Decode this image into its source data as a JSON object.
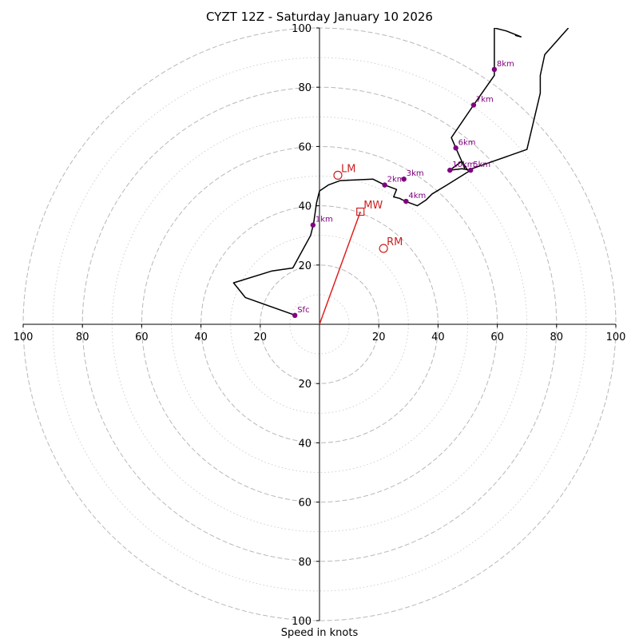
{
  "chart_data": {
    "type": "hodograph",
    "title": "CYZT 12Z - Saturday January 10 2026",
    "xlabel": "Speed in knots",
    "ylabel": "",
    "xlim": [
      -100,
      100
    ],
    "ylim": [
      -100,
      100
    ],
    "grid": true,
    "rings": {
      "major": [
        20,
        40,
        60,
        80,
        100
      ],
      "minor": [
        10,
        30,
        50,
        70,
        90
      ]
    },
    "x_tick_labels": [
      "100",
      "80",
      "60",
      "40",
      "20",
      "0",
      "20",
      "40",
      "60",
      "80",
      "100"
    ],
    "x_tick_values": [
      -100,
      -80,
      -60,
      -40,
      -20,
      0,
      20,
      40,
      60,
      80,
      100
    ],
    "y_tick_labels": [
      "20",
      "40",
      "60",
      "80",
      "100"
    ],
    "y_tick_values": [
      20,
      40,
      60,
      80,
      100
    ],
    "y_tick_labels_below": [
      "20",
      "40",
      "60",
      "80",
      "100"
    ],
    "y_tick_values_below": [
      -20,
      -40,
      -60,
      -80,
      -100
    ],
    "colors": {
      "trace": "#000000",
      "height_marker": "#800080",
      "motion": "#cc2020",
      "mean_wind_vector": "#e02020",
      "major_grid": "#b8b8b8",
      "minor_grid": "#d0d0d0"
    },
    "trace": [
      [
        -8,
        3
      ],
      [
        -25,
        9
      ],
      [
        -29,
        14
      ],
      [
        -16,
        18
      ],
      [
        -9,
        19
      ],
      [
        -3,
        30
      ],
      [
        -2,
        34
      ],
      [
        -1,
        41
      ],
      [
        0,
        45
      ],
      [
        3,
        47
      ],
      [
        7,
        48.5
      ],
      [
        18,
        49
      ],
      [
        22,
        47
      ],
      [
        26,
        45.5
      ],
      [
        25,
        43
      ],
      [
        27,
        42.5
      ],
      [
        29,
        41.5
      ],
      [
        33,
        40
      ],
      [
        36,
        42
      ],
      [
        38,
        44
      ],
      [
        43,
        47
      ],
      [
        51,
        52
      ],
      [
        48,
        52.5
      ],
      [
        44,
        52
      ],
      [
        48,
        55
      ],
      [
        50,
        52
      ],
      [
        70,
        59
      ],
      [
        74.5,
        78
      ],
      [
        74.5,
        84
      ],
      [
        76,
        91
      ],
      [
        84,
        100
      ]
    ],
    "upper_branch": [
      [
        49,
        52.5
      ],
      [
        48,
        55
      ],
      [
        46,
        59.5
      ],
      [
        44.5,
        63
      ],
      [
        52,
        74
      ],
      [
        59,
        84
      ],
      [
        59,
        86
      ],
      [
        59,
        100
      ],
      [
        63,
        99
      ],
      [
        68,
        97
      ],
      [
        66,
        97.5
      ]
    ],
    "height_markers": [
      {
        "label": "Sfc",
        "u": -8.3,
        "v": 3
      },
      {
        "label": "1km",
        "u": -2.2,
        "v": 33.5
      },
      {
        "label": "2km",
        "u": 22,
        "v": 47
      },
      {
        "label": "3km",
        "u": 28.5,
        "v": 49
      },
      {
        "label": "4km",
        "u": 29.2,
        "v": 41.5
      },
      {
        "label": "5km",
        "u": 51,
        "v": 52
      },
      {
        "label": "6km",
        "u": 46,
        "v": 59.5
      },
      {
        "label": "7km",
        "u": 52,
        "v": 74
      },
      {
        "label": "8km",
        "u": 59,
        "v": 86
      },
      {
        "label": "10km",
        "u": 44,
        "v": 52
      }
    ],
    "storm_motion": [
      {
        "label": "LM",
        "u": 6.2,
        "v": 50.3,
        "marker": "circle"
      },
      {
        "label": "RM",
        "u": 21.6,
        "v": 25.6,
        "marker": "circle"
      },
      {
        "label": "MW",
        "u": 13.8,
        "v": 38,
        "marker": "square"
      }
    ],
    "mean_wind_vector": {
      "from": [
        0,
        0
      ],
      "to": [
        13.8,
        38
      ]
    }
  }
}
